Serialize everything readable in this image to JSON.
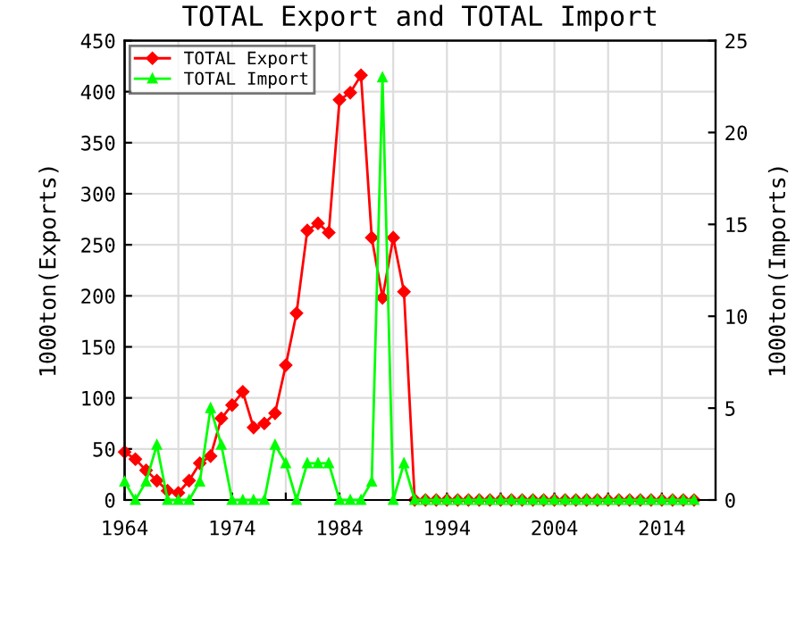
{
  "chart_data": {
    "type": "line",
    "title": "TOTAL Export and TOTAL Import",
    "ylabel": "1000ton(Exports)",
    "y2label": "1000ton(Imports)",
    "x": [
      1964,
      1965,
      1966,
      1967,
      1968,
      1969,
      1970,
      1971,
      1972,
      1973,
      1974,
      1975,
      1976,
      1977,
      1978,
      1979,
      1980,
      1981,
      1982,
      1983,
      1984,
      1985,
      1986,
      1987,
      1988,
      1989,
      1990,
      1991,
      1992,
      1993,
      1994,
      1995,
      1996,
      1997,
      1998,
      1999,
      2000,
      2001,
      2002,
      2003,
      2004,
      2005,
      2006,
      2007,
      2008,
      2009,
      2010,
      2011,
      2012,
      2013,
      2014,
      2015,
      2016,
      2017
    ],
    "series": [
      {
        "name": "TOTAL Export",
        "color": "#ff0000",
        "marker": "diamond",
        "values": [
          47,
          40,
          29,
          19,
          9,
          7,
          19,
          36,
          43,
          80,
          93,
          106,
          71,
          75,
          85,
          132,
          183,
          264,
          271,
          262,
          392,
          399,
          416,
          257,
          198,
          257,
          204,
          0,
          0,
          0,
          0,
          0,
          0,
          0,
          0,
          0,
          0,
          0,
          0,
          0,
          0,
          0,
          0,
          0,
          0,
          0,
          0,
          0,
          0,
          0,
          0,
          0,
          0,
          0
        ]
      },
      {
        "name": "TOTAL Import",
        "color": "#00ff00",
        "marker": "triangle",
        "axis": "y2",
        "values": [
          1,
          0,
          1,
          3,
          0,
          0,
          0,
          1,
          5,
          3,
          0,
          0,
          0,
          0,
          3,
          2,
          0,
          2,
          2,
          2,
          0,
          0,
          0,
          1,
          23,
          0,
          2,
          0,
          0,
          0,
          0,
          0,
          0,
          0,
          0,
          0,
          0,
          0,
          0,
          0,
          0,
          0,
          0,
          0,
          0,
          0,
          0,
          0,
          0,
          0,
          0,
          0,
          0,
          0
        ]
      }
    ],
    "xlim": [
      1964,
      2019
    ],
    "xticks": [
      1964,
      {
        "value": 1969,
        "label": null
      },
      1974,
      {
        "value": 1979,
        "label": null
      },
      1984,
      {
        "value": 1989,
        "label": null
      },
      1994,
      {
        "value": 1999,
        "label": null
      },
      2004,
      {
        "value": 2009,
        "label": null
      },
      2014
    ],
    "ylim": [
      0,
      450
    ],
    "yticks": [
      0,
      50,
      100,
      150,
      200,
      250,
      300,
      350,
      400,
      450
    ],
    "y2lim": [
      0,
      25
    ],
    "y2ticks": [
      0,
      5,
      10,
      15,
      20,
      25
    ],
    "grid": true,
    "legend": "top left",
    "line_style": "solid"
  }
}
